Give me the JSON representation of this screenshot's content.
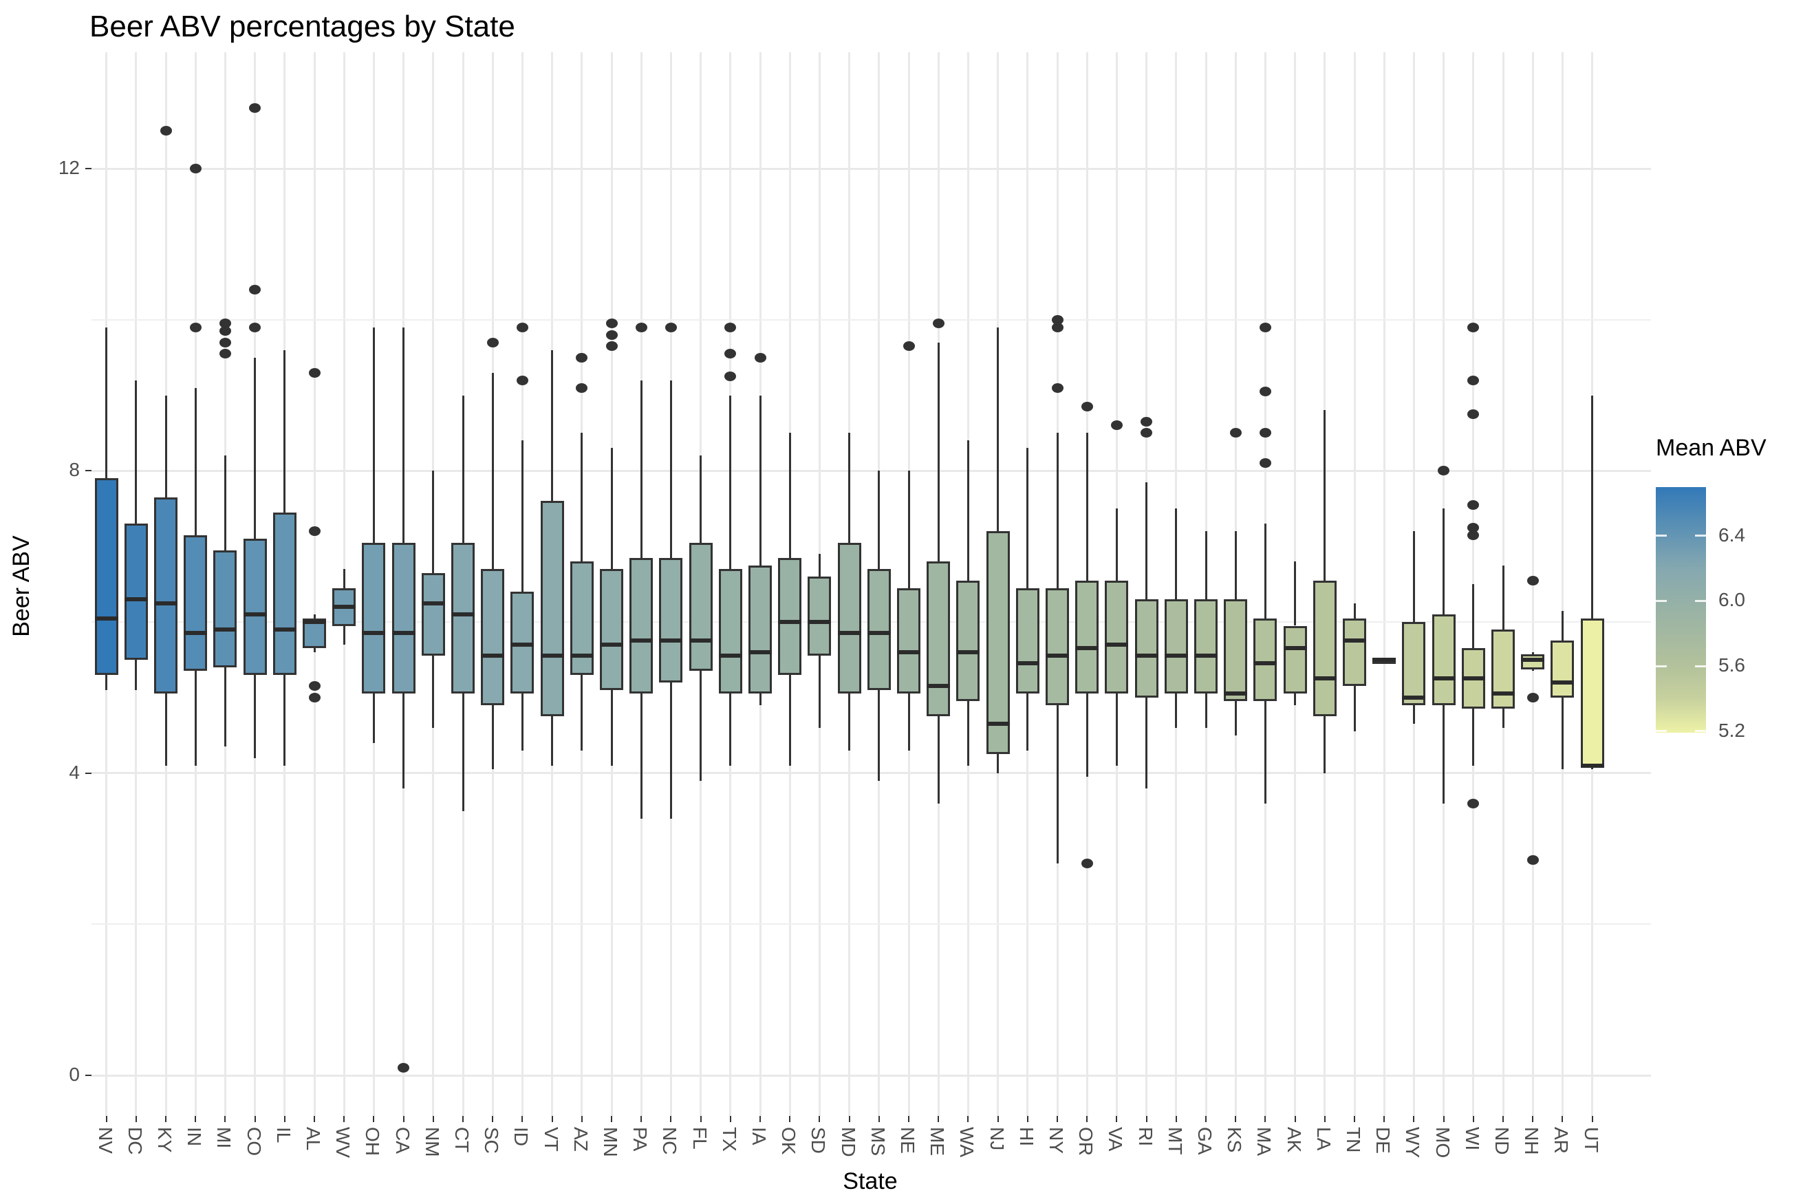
{
  "title": "Beer ABV percentages by State",
  "axes": {
    "x_title": "State",
    "y_title": "Beer ABV",
    "y_ticks": [
      "0",
      "4",
      "8",
      "12"
    ]
  },
  "legend": {
    "title": "Mean ABV",
    "ticks": [
      "6.4",
      "6.0",
      "5.6",
      "5.2"
    ],
    "scale_min": 5.19,
    "scale_max": 6.7
  },
  "colors": {
    "grid": "#e9e9e9",
    "box_stroke": "#333333",
    "outlier": "#333333",
    "scale_stops": [
      [
        6.7,
        "#3279b8"
      ],
      [
        6.2,
        "#85a8b0"
      ],
      [
        5.9,
        "#9cb4a3"
      ],
      [
        5.6,
        "#b3c29c"
      ],
      [
        5.4,
        "#c7d19e"
      ],
      [
        5.19,
        "#eef2a6"
      ]
    ]
  },
  "chart_data": {
    "type": "boxplot",
    "title": "Beer ABV percentages by State",
    "xlabel": "State",
    "ylabel": "Beer ABV",
    "ylim": [
      0,
      13.2
    ],
    "y_major_gridlines": [
      0,
      4,
      8,
      12
    ],
    "y_minor_gridlines": [
      2,
      6,
      10
    ],
    "legend_scale": "Mean ABV, continuous gradient blue(high) to yellow(low), range 5.2-6.7",
    "states": [
      {
        "label": "NV",
        "mean": 6.7,
        "min": 5.1,
        "q1": 5.3,
        "median": 6.05,
        "q3": 7.9,
        "max": 9.9,
        "outliers": []
      },
      {
        "label": "DC",
        "mean": 6.62,
        "min": 5.1,
        "q1": 5.5,
        "median": 6.3,
        "q3": 7.3,
        "max": 9.2,
        "outliers": []
      },
      {
        "label": "KY",
        "mean": 6.55,
        "min": 4.1,
        "q1": 5.05,
        "median": 6.25,
        "q3": 7.65,
        "max": 9.0,
        "outliers": [
          12.5
        ]
      },
      {
        "label": "IN",
        "mean": 6.5,
        "min": 4.1,
        "q1": 5.35,
        "median": 5.85,
        "q3": 7.15,
        "max": 9.1,
        "outliers": [
          12.0,
          9.9
        ]
      },
      {
        "label": "MI",
        "mean": 6.45,
        "min": 4.35,
        "q1": 5.4,
        "median": 5.9,
        "q3": 6.95,
        "max": 8.2,
        "outliers": [
          9.95,
          9.85,
          9.7,
          9.55
        ]
      },
      {
        "label": "CO",
        "mean": 6.42,
        "min": 4.2,
        "q1": 5.3,
        "median": 6.1,
        "q3": 7.1,
        "max": 9.5,
        "outliers": [
          12.8,
          10.4,
          9.9
        ]
      },
      {
        "label": "IL",
        "mean": 6.4,
        "min": 4.1,
        "q1": 5.3,
        "median": 5.9,
        "q3": 7.45,
        "max": 9.6,
        "outliers": []
      },
      {
        "label": "AL",
        "mean": 6.37,
        "min": 5.6,
        "q1": 5.65,
        "median": 6.0,
        "q3": 6.05,
        "max": 6.1,
        "outliers": [
          9.3,
          7.2,
          5.15,
          5.0
        ]
      },
      {
        "label": "WV",
        "mean": 6.33,
        "min": 5.7,
        "q1": 5.95,
        "median": 6.2,
        "q3": 6.45,
        "max": 6.7,
        "outliers": []
      },
      {
        "label": "OH",
        "mean": 6.3,
        "min": 4.4,
        "q1": 5.05,
        "median": 5.85,
        "q3": 7.05,
        "max": 9.9,
        "outliers": []
      },
      {
        "label": "CA",
        "mean": 6.27,
        "min": 3.8,
        "q1": 5.05,
        "median": 5.85,
        "q3": 7.05,
        "max": 9.9,
        "outliers": [
          0.1
        ]
      },
      {
        "label": "NM",
        "mean": 6.23,
        "min": 4.6,
        "q1": 5.55,
        "median": 6.25,
        "q3": 6.65,
        "max": 8.0,
        "outliers": []
      },
      {
        "label": "CT",
        "mean": 6.2,
        "min": 3.5,
        "q1": 5.05,
        "median": 6.1,
        "q3": 7.05,
        "max": 9.0,
        "outliers": []
      },
      {
        "label": "SC",
        "mean": 6.17,
        "min": 4.05,
        "q1": 4.9,
        "median": 5.55,
        "q3": 6.7,
        "max": 9.3,
        "outliers": [
          9.7
        ]
      },
      {
        "label": "ID",
        "mean": 6.15,
        "min": 4.3,
        "q1": 5.05,
        "median": 5.7,
        "q3": 6.4,
        "max": 8.4,
        "outliers": [
          9.9,
          9.2
        ]
      },
      {
        "label": "VT",
        "mean": 6.12,
        "min": 4.1,
        "q1": 4.75,
        "median": 5.55,
        "q3": 7.6,
        "max": 9.6,
        "outliers": []
      },
      {
        "label": "AZ",
        "mean": 6.1,
        "min": 4.3,
        "q1": 5.3,
        "median": 5.55,
        "q3": 6.8,
        "max": 8.5,
        "outliers": [
          9.5,
          9.1
        ]
      },
      {
        "label": "MN",
        "mean": 6.08,
        "min": 4.1,
        "q1": 5.1,
        "median": 5.7,
        "q3": 6.7,
        "max": 8.3,
        "outliers": [
          9.95,
          9.8,
          9.65
        ]
      },
      {
        "label": "PA",
        "mean": 6.05,
        "min": 3.4,
        "q1": 5.05,
        "median": 5.75,
        "q3": 6.85,
        "max": 9.2,
        "outliers": [
          9.9
        ]
      },
      {
        "label": "NC",
        "mean": 6.03,
        "min": 3.4,
        "q1": 5.2,
        "median": 5.75,
        "q3": 6.85,
        "max": 9.2,
        "outliers": [
          9.9
        ]
      },
      {
        "label": "FL",
        "mean": 6.0,
        "min": 3.9,
        "q1": 5.35,
        "median": 5.75,
        "q3": 7.05,
        "max": 8.2,
        "outliers": []
      },
      {
        "label": "TX",
        "mean": 5.98,
        "min": 4.1,
        "q1": 5.05,
        "median": 5.55,
        "q3": 6.7,
        "max": 9.0,
        "outliers": [
          9.9,
          9.55,
          9.25
        ]
      },
      {
        "label": "IA",
        "mean": 5.97,
        "min": 4.9,
        "q1": 5.05,
        "median": 5.6,
        "q3": 6.75,
        "max": 9.0,
        "outliers": [
          9.5
        ]
      },
      {
        "label": "OK",
        "mean": 5.95,
        "min": 4.1,
        "q1": 5.3,
        "median": 6.0,
        "q3": 6.85,
        "max": 8.5,
        "outliers": []
      },
      {
        "label": "SD",
        "mean": 5.93,
        "min": 4.6,
        "q1": 5.55,
        "median": 6.0,
        "q3": 6.6,
        "max": 6.9,
        "outliers": []
      },
      {
        "label": "MD",
        "mean": 5.92,
        "min": 4.3,
        "q1": 5.05,
        "median": 5.85,
        "q3": 7.05,
        "max": 8.5,
        "outliers": []
      },
      {
        "label": "MS",
        "mean": 5.9,
        "min": 3.9,
        "q1": 5.1,
        "median": 5.85,
        "q3": 6.7,
        "max": 8.0,
        "outliers": []
      },
      {
        "label": "NE",
        "mean": 5.88,
        "min": 4.3,
        "q1": 5.05,
        "median": 5.6,
        "q3": 6.45,
        "max": 8.0,
        "outliers": [
          9.65
        ]
      },
      {
        "label": "ME",
        "mean": 5.86,
        "min": 3.6,
        "q1": 4.75,
        "median": 5.15,
        "q3": 6.8,
        "max": 9.7,
        "outliers": [
          9.95
        ]
      },
      {
        "label": "WA",
        "mean": 5.84,
        "min": 4.1,
        "q1": 4.95,
        "median": 5.6,
        "q3": 6.55,
        "max": 8.4,
        "outliers": []
      },
      {
        "label": "NJ",
        "mean": 5.82,
        "min": 4.0,
        "q1": 4.25,
        "median": 4.65,
        "q3": 7.2,
        "max": 9.9,
        "outliers": []
      },
      {
        "label": "HI",
        "mean": 5.8,
        "min": 4.3,
        "q1": 5.05,
        "median": 5.45,
        "q3": 6.45,
        "max": 8.3,
        "outliers": []
      },
      {
        "label": "NY",
        "mean": 5.78,
        "min": 2.8,
        "q1": 4.9,
        "median": 5.55,
        "q3": 6.45,
        "max": 8.5,
        "outliers": [
          10.0,
          9.9,
          9.1
        ]
      },
      {
        "label": "OR",
        "mean": 5.76,
        "min": 3.95,
        "q1": 5.05,
        "median": 5.65,
        "q3": 6.55,
        "max": 8.5,
        "outliers": [
          8.85,
          2.8
        ]
      },
      {
        "label": "VA",
        "mean": 5.74,
        "min": 4.1,
        "q1": 5.05,
        "median": 5.7,
        "q3": 6.55,
        "max": 7.5,
        "outliers": [
          8.6
        ]
      },
      {
        "label": "RI",
        "mean": 5.72,
        "min": 3.8,
        "q1": 5.0,
        "median": 5.55,
        "q3": 6.3,
        "max": 7.85,
        "outliers": [
          8.65,
          8.5
        ]
      },
      {
        "label": "MT",
        "mean": 5.7,
        "min": 4.6,
        "q1": 5.05,
        "median": 5.55,
        "q3": 6.3,
        "max": 7.5,
        "outliers": []
      },
      {
        "label": "GA",
        "mean": 5.67,
        "min": 4.6,
        "q1": 5.05,
        "median": 5.55,
        "q3": 6.3,
        "max": 7.2,
        "outliers": []
      },
      {
        "label": "KS",
        "mean": 5.64,
        "min": 4.5,
        "q1": 4.95,
        "median": 5.05,
        "q3": 6.3,
        "max": 7.2,
        "outliers": [
          8.5
        ]
      },
      {
        "label": "MA",
        "mean": 5.61,
        "min": 3.6,
        "q1": 4.95,
        "median": 5.45,
        "q3": 6.05,
        "max": 7.3,
        "outliers": [
          9.9,
          9.05,
          8.5,
          8.1
        ]
      },
      {
        "label": "AK",
        "mean": 5.58,
        "min": 4.9,
        "q1": 5.05,
        "median": 5.65,
        "q3": 5.95,
        "max": 6.8,
        "outliers": []
      },
      {
        "label": "LA",
        "mean": 5.56,
        "min": 4.0,
        "q1": 4.75,
        "median": 5.25,
        "q3": 6.55,
        "max": 8.8,
        "outliers": []
      },
      {
        "label": "TN",
        "mean": 5.53,
        "min": 4.55,
        "q1": 5.15,
        "median": 5.75,
        "q3": 6.05,
        "max": 6.25,
        "outliers": []
      },
      {
        "label": "DE",
        "mean": 5.5,
        "min": 5.5,
        "q1": 5.5,
        "median": 5.5,
        "q3": 5.5,
        "max": 5.5,
        "outliers": []
      },
      {
        "label": "WY",
        "mean": 5.47,
        "min": 4.65,
        "q1": 4.9,
        "median": 5.0,
        "q3": 6.0,
        "max": 7.2,
        "outliers": []
      },
      {
        "label": "MO",
        "mean": 5.44,
        "min": 3.6,
        "q1": 4.9,
        "median": 5.25,
        "q3": 6.1,
        "max": 7.5,
        "outliers": [
          8.0
        ]
      },
      {
        "label": "WI",
        "mean": 5.4,
        "min": 4.1,
        "q1": 4.85,
        "median": 5.25,
        "q3": 5.65,
        "max": 6.5,
        "outliers": [
          9.9,
          9.2,
          8.75,
          7.55,
          7.25,
          7.15,
          3.6
        ]
      },
      {
        "label": "ND",
        "mean": 5.37,
        "min": 4.6,
        "q1": 4.85,
        "median": 5.05,
        "q3": 5.9,
        "max": 6.75,
        "outliers": []
      },
      {
        "label": "NH",
        "mean": 5.33,
        "min": 5.35,
        "q1": 5.37,
        "median": 5.5,
        "q3": 5.57,
        "max": 5.6,
        "outliers": [
          6.55,
          5.0,
          2.85
        ]
      },
      {
        "label": "AR",
        "mean": 5.28,
        "min": 4.05,
        "q1": 5.0,
        "median": 5.2,
        "q3": 5.75,
        "max": 6.15,
        "outliers": []
      },
      {
        "label": "UT",
        "mean": 5.2,
        "min": 4.05,
        "q1": 4.07,
        "median": 4.1,
        "q3": 6.05,
        "max": 9.0,
        "outliers": []
      }
    ]
  }
}
